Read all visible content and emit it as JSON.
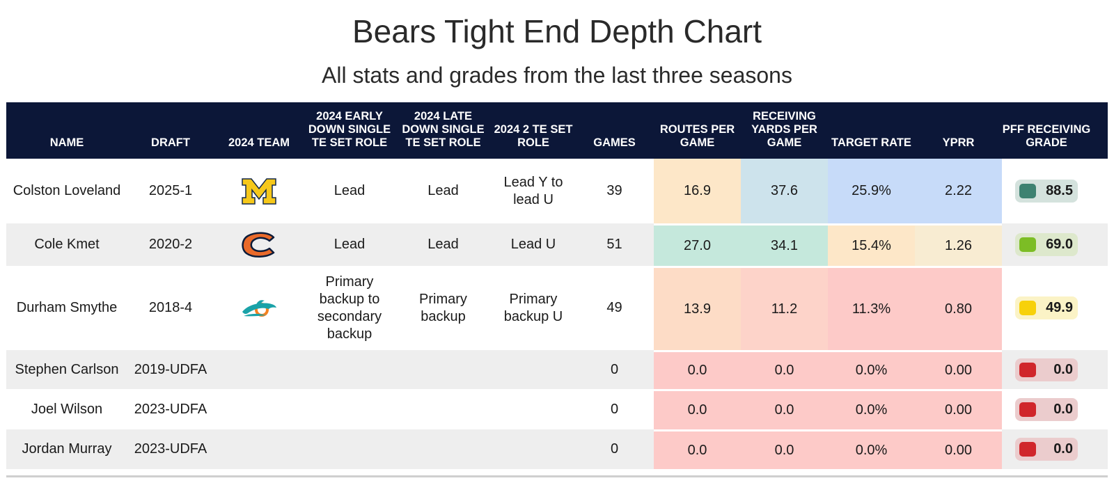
{
  "title": "Bears Tight End Depth Chart",
  "subtitle": "All stats and grades from the last three seasons",
  "chart_data": {
    "type": "table",
    "columns": [
      "NAME",
      "DRAFT",
      "2024 TEAM",
      "2024 EARLY DOWN SINGLE TE SET ROLE",
      "2024 LATE DOWN SINGLE TE SET ROLE",
      "2024 2 TE SET ROLE",
      "GAMES",
      "ROUTES PER GAME",
      "RECEIVING YARDS PER GAME",
      "TARGET RATE",
      "YPRR",
      "PFF RECEIVING GRADE"
    ],
    "rows": [
      {
        "name": "Colston Loveland",
        "draft": "2025-1",
        "team_icon": "michigan-logo",
        "early": "Lead",
        "late": "Lead",
        "two_te": "Lead Y to lead U",
        "games": "39",
        "routes": "16.9",
        "yards": "37.6",
        "target": "25.9%",
        "yprr": "2.22",
        "grade": "88.5"
      },
      {
        "name": "Cole Kmet",
        "draft": "2020-2",
        "team_icon": "chicago-bears-logo",
        "early": "Lead",
        "late": "Lead",
        "two_te": "Lead U",
        "games": "51",
        "routes": "27.0",
        "yards": "34.1",
        "target": "15.4%",
        "yprr": "1.26",
        "grade": "69.0"
      },
      {
        "name": "Durham Smythe",
        "draft": "2018-4",
        "team_icon": "miami-dolphins-logo",
        "early": "Primary backup to secondary backup",
        "late": "Primary backup",
        "two_te": "Primary backup U",
        "games": "49",
        "routes": "13.9",
        "yards": "11.2",
        "target": "11.3%",
        "yprr": "0.80",
        "grade": "49.9"
      },
      {
        "name": "Stephen Carlson",
        "draft": "2019-UDFA",
        "team_icon": "",
        "early": "",
        "late": "",
        "two_te": "",
        "games": "0",
        "routes": "0.0",
        "yards": "0.0",
        "target": "0.0%",
        "yprr": "0.00",
        "grade": "0.0"
      },
      {
        "name": "Joel Wilson",
        "draft": "2023-UDFA",
        "team_icon": "",
        "early": "",
        "late": "",
        "two_te": "",
        "games": "0",
        "routes": "0.0",
        "yards": "0.0",
        "target": "0.0%",
        "yprr": "0.00",
        "grade": "0.0"
      },
      {
        "name": "Jordan Murray",
        "draft": "2023-UDFA",
        "team_icon": "",
        "early": "",
        "late": "",
        "two_te": "",
        "games": "0",
        "routes": "0.0",
        "yards": "0.0",
        "target": "0.0%",
        "yprr": "0.00",
        "grade": "0.0"
      }
    ],
    "cell_colors": {
      "routes": [
        "#fde7c8",
        "#c5e8dc",
        "#fddcc6",
        "#fdcac8",
        "#fdcac8",
        "#fdcac8"
      ],
      "yards": [
        "#cde3ec",
        "#c5e8dc",
        "#fdd3c9",
        "#fdcac8",
        "#fdcac8",
        "#fdcac8"
      ],
      "target": [
        "#c7dbf9",
        "#fde7c8",
        "#fdcac8",
        "#fdcac8",
        "#fdcac8",
        "#fdcac8"
      ],
      "yprr": [
        "#c7dbf9",
        "#f8ecd2",
        "#fdcac8",
        "#fdcac8",
        "#fdcac8",
        "#fdcac8"
      ]
    },
    "grade_colors": [
      {
        "dot": "#3e8271",
        "bg": "#d4e2dd"
      },
      {
        "dot": "#7cbd25",
        "bg": "#dde8cc"
      },
      {
        "dot": "#f7d10a",
        "bg": "#fbf3c6"
      },
      {
        "dot": "#d0262b",
        "bg": "#ebcccd"
      },
      {
        "dot": "#d0262b",
        "bg": "#ebcccd"
      },
      {
        "dot": "#d0262b",
        "bg": "#ebcccd"
      }
    ],
    "row_backgrounds": [
      "#ffffff",
      "#eeeeee",
      "#ffffff",
      "#eeeeee",
      "#ffffff",
      "#eeeeee"
    ]
  }
}
